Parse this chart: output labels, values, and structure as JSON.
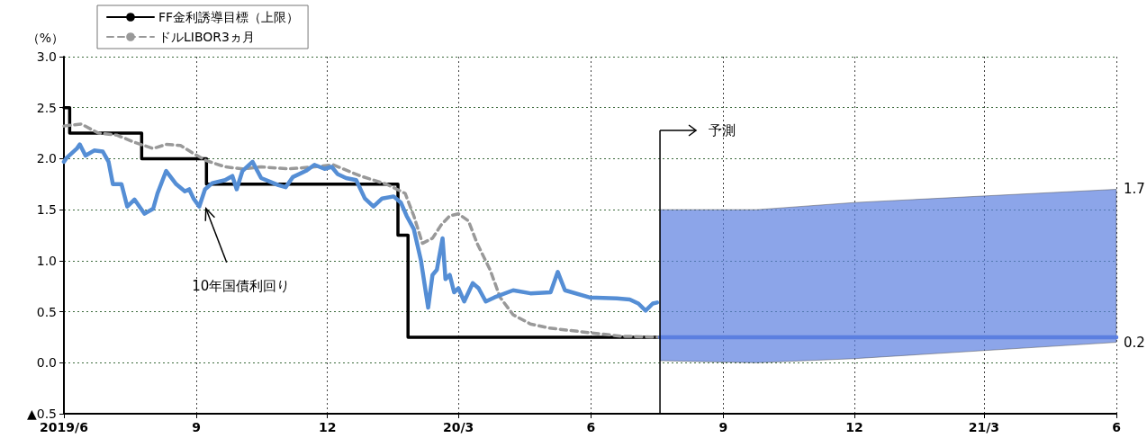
{
  "chart_data": {
    "type": "line",
    "ylabel": "（%）",
    "xlim": [
      "2019-06-01",
      "2021-06-01"
    ],
    "xticks": [
      {
        "value": "2019-06-01",
        "label": "2019/6"
      },
      {
        "value": "2019-09-01",
        "label": "9"
      },
      {
        "value": "2019-12-01",
        "label": "12"
      },
      {
        "value": "2020-03-01",
        "label": "20/3"
      },
      {
        "value": "2020-06-01",
        "label": "6"
      },
      {
        "value": "2020-09-01",
        "label": "9"
      },
      {
        "value": "2020-12-01",
        "label": "12"
      },
      {
        "value": "2021-03-01",
        "label": "21/3"
      },
      {
        "value": "2021-06-01",
        "label": "6"
      }
    ],
    "ylim": [
      -0.5,
      3
    ],
    "yticks": [
      {
        "value": -0.5,
        "label": "▲0.5"
      },
      {
        "value": 0,
        "label": "0.0"
      },
      {
        "value": 0.5,
        "label": "0.5"
      },
      {
        "value": 1,
        "label": "1.0"
      },
      {
        "value": 1.5,
        "label": "1.5"
      },
      {
        "value": 2,
        "label": "2.0"
      },
      {
        "value": 2.5,
        "label": "2.5"
      },
      {
        "value": 3,
        "label": "3.0"
      }
    ],
    "grid": true,
    "legend": "top left",
    "marker": "none",
    "series": [
      {
        "name": "FF金利誘導目標（上限）",
        "type": "step",
        "color": "#000000",
        "line_style": "solid",
        "x": [
          "2019-06-01",
          "2019-06-05",
          "2019-07-25",
          "2019-09-08",
          "2020-01-19",
          "2020-01-26",
          "2020-07-19"
        ],
        "values": [
          2.5,
          2.25,
          2.0,
          1.75,
          1.25,
          0.25,
          0.25
        ]
      },
      {
        "name": "ドルLIBOR3ヵ月",
        "color": "#999999",
        "line_style": "dashed",
        "x": [
          "2019-06-01",
          "2019-06-13",
          "2019-06-25",
          "2019-07-08",
          "2019-07-20",
          "2019-08-02",
          "2019-08-11",
          "2019-08-21",
          "2019-08-30",
          "2019-09-08",
          "2019-09-21",
          "2019-10-03",
          "2019-10-16",
          "2019-11-04",
          "2019-11-22",
          "2019-12-05",
          "2019-12-24",
          "2020-01-11",
          "2020-01-24",
          "2020-01-30",
          "2020-02-05",
          "2020-02-12",
          "2020-02-18",
          "2020-02-24",
          "2020-03-01",
          "2020-03-08",
          "2020-03-14",
          "2020-03-23",
          "2020-03-30",
          "2020-04-08",
          "2020-04-20",
          "2020-05-03",
          "2020-05-15",
          "2020-06-03",
          "2020-06-22",
          "2020-07-19"
        ],
        "values": [
          2.32,
          2.34,
          2.25,
          2.23,
          2.16,
          2.1,
          2.14,
          2.13,
          2.05,
          1.98,
          1.92,
          1.9,
          1.92,
          1.9,
          1.92,
          1.94,
          1.83,
          1.75,
          1.66,
          1.44,
          1.17,
          1.22,
          1.35,
          1.44,
          1.46,
          1.39,
          1.17,
          0.91,
          0.64,
          0.47,
          0.38,
          0.34,
          0.32,
          0.29,
          0.26,
          0.25
        ]
      },
      {
        "color": "#558ed5",
        "line_style": "solid",
        "x": [
          "2019-06-01",
          "2019-06-03",
          "2019-06-10",
          "2019-06-12",
          "2019-06-16",
          "2019-06-22",
          "2019-06-28",
          "2019-07-02",
          "2019-07-05",
          "2019-07-11",
          "2019-07-15",
          "2019-07-20",
          "2019-07-27",
          "2019-08-02",
          "2019-08-05",
          "2019-08-11",
          "2019-08-18",
          "2019-08-24",
          "2019-08-27",
          "2019-08-30",
          "2019-09-03",
          "2019-09-07",
          "2019-09-12",
          "2019-09-21",
          "2019-09-26",
          "2019-09-29",
          "2019-10-03",
          "2019-10-10",
          "2019-10-16",
          "2019-10-28",
          "2019-11-02",
          "2019-11-07",
          "2019-11-16",
          "2019-11-22",
          "2019-11-29",
          "2019-12-04",
          "2019-12-08",
          "2019-12-14",
          "2019-12-21",
          "2019-12-27",
          "2020-01-02",
          "2020-01-08",
          "2020-01-16",
          "2020-01-21",
          "2020-01-25",
          "2020-01-30",
          "2020-02-04",
          "2020-02-09",
          "2020-02-12",
          "2020-02-15",
          "2020-02-19",
          "2020-02-21",
          "2020-02-24",
          "2020-02-27",
          "2020-03-01",
          "2020-03-05",
          "2020-03-11",
          "2020-03-15",
          "2020-03-20",
          "2020-03-26",
          "2020-04-08",
          "2020-04-20",
          "2020-05-04",
          "2020-05-09",
          "2020-05-14",
          "2020-05-31",
          "2020-06-19",
          "2020-06-28",
          "2020-07-04",
          "2020-07-09",
          "2020-07-14",
          "2020-07-17"
        ],
        "values": [
          1.97,
          2.01,
          2.1,
          2.14,
          2.03,
          2.08,
          2.07,
          1.97,
          1.75,
          1.75,
          1.53,
          1.6,
          1.46,
          1.51,
          1.66,
          1.88,
          1.75,
          1.68,
          1.7,
          1.61,
          1.53,
          1.7,
          1.76,
          1.79,
          1.83,
          1.7,
          1.88,
          1.97,
          1.81,
          1.74,
          1.72,
          1.82,
          1.88,
          1.94,
          1.9,
          1.92,
          1.85,
          1.81,
          1.79,
          1.61,
          1.53,
          1.61,
          1.63,
          1.57,
          1.44,
          1.31,
          1.0,
          0.54,
          0.86,
          0.91,
          1.22,
          0.82,
          0.86,
          0.69,
          0.73,
          0.6,
          0.78,
          0.73,
          0.6,
          0.64,
          0.71,
          0.68,
          0.69,
          0.89,
          0.71,
          0.64,
          0.63,
          0.62,
          0.58,
          0.51,
          0.58,
          0.59
        ]
      },
      {
        "color": "#5b7fe0",
        "line_style": "solid",
        "x": [
          "2020-07-19",
          "2020-09-24",
          "2020-12-01",
          "2021-06-01"
        ],
        "values": [
          0.25,
          0.25,
          0.25,
          0.25
        ],
        "lower": [
          0.02,
          0.0,
          0.04,
          0.2
        ],
        "upper": [
          1.5,
          1.5,
          1.57,
          1.7
        ]
      }
    ],
    "ref_lines": [
      {
        "axis": "x",
        "value": "2020-07-19",
        "label": "予測",
        "color": "#000000"
      }
    ],
    "annotations": [
      {
        "text": "10年国債利回り",
        "x": "2019-09-07",
        "y": 1.53
      },
      {
        "text": "1.7",
        "x": "2021-06-01",
        "y": 1.7
      },
      {
        "text": "0.2",
        "x": "2021-06-01",
        "y": 0.2
      }
    ]
  }
}
